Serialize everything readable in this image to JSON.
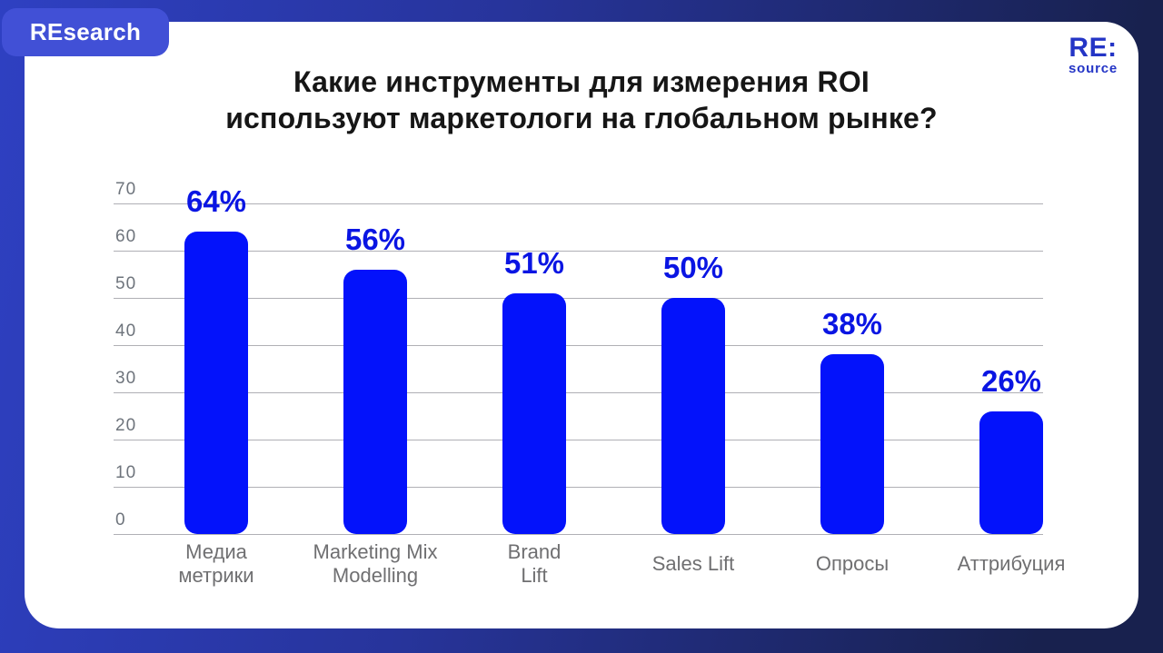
{
  "badge": {
    "label": "REsearch"
  },
  "logo": {
    "line1": "RE:",
    "line2": "source"
  },
  "title": {
    "line1": "Какие инструменты для измерения ROI",
    "line2": "используют маркетологи на глобальном рынке?"
  },
  "chart_data": {
    "type": "bar",
    "title": "Какие инструменты для измерения ROI используют маркетологи на глобальном рынке?",
    "categories": [
      "Медиа метрики",
      "Marketing Mix Modelling",
      "Brand Lift",
      "Sales Lift",
      "Опросы",
      "Аттрибуция"
    ],
    "category_lines": [
      [
        "Медиа",
        "метрики"
      ],
      [
        "Marketing Mix",
        "Modelling"
      ],
      [
        "Brand",
        "Lift"
      ],
      [
        "Sales Lift"
      ],
      [
        "Опросы"
      ],
      [
        "Аттрибуция"
      ]
    ],
    "values": [
      64,
      56,
      51,
      50,
      38,
      26
    ],
    "value_labels": [
      "64%",
      "56%",
      "51%",
      "50%",
      "38%",
      "26%"
    ],
    "unit": "%",
    "ylim": [
      0,
      70
    ],
    "yticks": [
      0,
      10,
      20,
      30,
      40,
      50,
      60,
      70
    ],
    "grid": true,
    "legend": "none",
    "xlabel": "",
    "ylabel": ""
  },
  "colors": {
    "bar": "#0312FB",
    "value_label": "#0A15E3",
    "badge_bg": "#4150D6",
    "logo_text": "#2435C6",
    "frame_gradient_start": "#2E40C2",
    "frame_gradient_end": "#18214E",
    "gridline": "#B0B0B5",
    "axis_text": "#6E747C",
    "category_text": "#6F6F71",
    "title_text": "#161616",
    "card_bg": "#FFFFFF"
  }
}
